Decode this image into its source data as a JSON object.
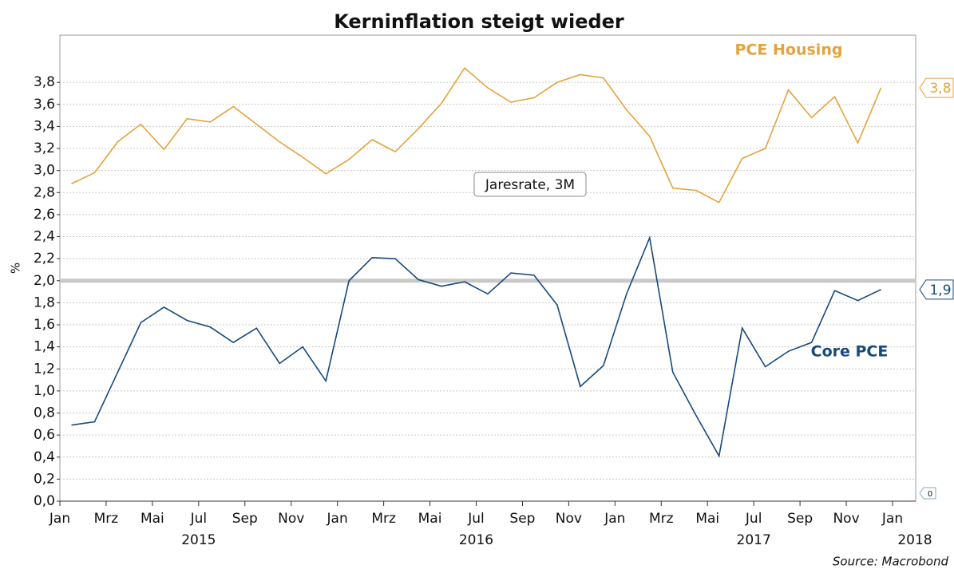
{
  "chart_data": {
    "type": "line",
    "title": "Kerninflation steigt wieder",
    "y_label": "%",
    "annotation": "Jaresrate, 3M",
    "source": "Source: Macrobond",
    "x": [
      "2015-01",
      "2015-02",
      "2015-03",
      "2015-04",
      "2015-05",
      "2015-06",
      "2015-07",
      "2015-08",
      "2015-09",
      "2015-10",
      "2015-11",
      "2015-12",
      "2016-01",
      "2016-02",
      "2016-03",
      "2016-04",
      "2016-05",
      "2016-06",
      "2016-07",
      "2016-08",
      "2016-09",
      "2016-10",
      "2016-11",
      "2016-12",
      "2017-01",
      "2017-02",
      "2017-03",
      "2017-04",
      "2017-05",
      "2017-06",
      "2017-07",
      "2017-08",
      "2017-09",
      "2017-10",
      "2017-11",
      "2017-12"
    ],
    "series": [
      {
        "name": "PCE Housing",
        "color": "#e3a33b",
        "end_label": "3,8",
        "values": [
          2.88,
          2.98,
          3.26,
          3.42,
          3.19,
          3.47,
          3.44,
          3.58,
          3.42,
          3.26,
          3.12,
          2.97,
          3.1,
          3.28,
          3.17,
          3.38,
          3.61,
          3.93,
          3.75,
          3.62,
          3.66,
          3.8,
          3.87,
          3.84,
          3.55,
          3.31,
          2.84,
          2.82,
          2.71,
          3.11,
          3.2,
          3.73,
          3.48,
          3.67,
          3.25,
          3.75
        ]
      },
      {
        "name": "Core PCE",
        "color": "#17497d",
        "end_label": "1,9",
        "values": [
          0.69,
          0.72,
          1.17,
          1.62,
          1.76,
          1.64,
          1.58,
          1.44,
          1.57,
          1.25,
          1.4,
          1.09,
          2.0,
          2.21,
          2.2,
          2.01,
          1.95,
          1.99,
          1.88,
          2.07,
          2.05,
          1.78,
          1.04,
          1.23,
          1.88,
          2.39,
          1.17,
          0.78,
          0.41,
          1.57,
          1.22,
          1.36,
          1.44,
          1.91,
          1.82,
          1.92
        ]
      }
    ],
    "reference_line": 2,
    "y2_marker": 0,
    "xlim": [
      "2015-01",
      "2018-01"
    ],
    "xticks": [
      {
        "value": "2015-01",
        "label": "Jan"
      },
      {
        "value": "2015-03",
        "label": "Mrz"
      },
      {
        "value": "2015-05",
        "label": "Mai"
      },
      {
        "value": "2015-07",
        "label": "Jul"
      },
      {
        "value": "2015-09",
        "label": "Sep"
      },
      {
        "value": "2015-11",
        "label": "Nov"
      },
      {
        "value": "2016-01",
        "label": "Jan"
      },
      {
        "value": "2016-03",
        "label": "Mrz"
      },
      {
        "value": "2016-05",
        "label": "Mai"
      },
      {
        "value": "2016-07",
        "label": "Jul"
      },
      {
        "value": "2016-09",
        "label": "Sep"
      },
      {
        "value": "2016-11",
        "label": "Nov"
      },
      {
        "value": "2017-01",
        "label": "Jan"
      },
      {
        "value": "2017-03",
        "label": "Mrz"
      },
      {
        "value": "2017-05",
        "label": "Mai"
      },
      {
        "value": "2017-07",
        "label": "Jul"
      },
      {
        "value": "2017-09",
        "label": "Sep"
      },
      {
        "value": "2017-11",
        "label": "Nov"
      },
      {
        "value": "2018-01",
        "label": "Jan"
      }
    ],
    "year_labels": [
      {
        "value": "2015-07",
        "label": "2015"
      },
      {
        "value": "2016-07",
        "label": "2016"
      },
      {
        "value": "2017-07",
        "label": "2017"
      },
      {
        "value": "2018-01",
        "label": "2018"
      }
    ],
    "ylim": [
      0,
      4
    ],
    "yticks": [
      {
        "value": 0,
        "label": "0,0"
      },
      {
        "value": 0.2,
        "label": "0,2"
      },
      {
        "value": 0.4,
        "label": "0,4"
      },
      {
        "value": 0.6,
        "label": "0,6"
      },
      {
        "value": 0.8,
        "label": "0,8"
      },
      {
        "value": 1,
        "label": "1,0"
      },
      {
        "value": 1.2,
        "label": "1,2"
      },
      {
        "value": 1.4,
        "label": "1,4"
      },
      {
        "value": 1.6,
        "label": "1,6"
      },
      {
        "value": 1.8,
        "label": "1,8"
      },
      {
        "value": 2,
        "label": "2,0"
      },
      {
        "value": 2.2,
        "label": "2,2"
      },
      {
        "value": 2.4,
        "label": "2,4"
      },
      {
        "value": 2.6,
        "label": "2,6"
      },
      {
        "value": 2.8,
        "label": "2,8"
      },
      {
        "value": 3,
        "label": "3,0"
      },
      {
        "value": 3.2,
        "label": "3,2"
      },
      {
        "value": 3.4,
        "label": "3,4"
      },
      {
        "value": 3.6,
        "label": "3,6"
      },
      {
        "value": 3.8,
        "label": "3,8"
      }
    ],
    "grid": true
  }
}
